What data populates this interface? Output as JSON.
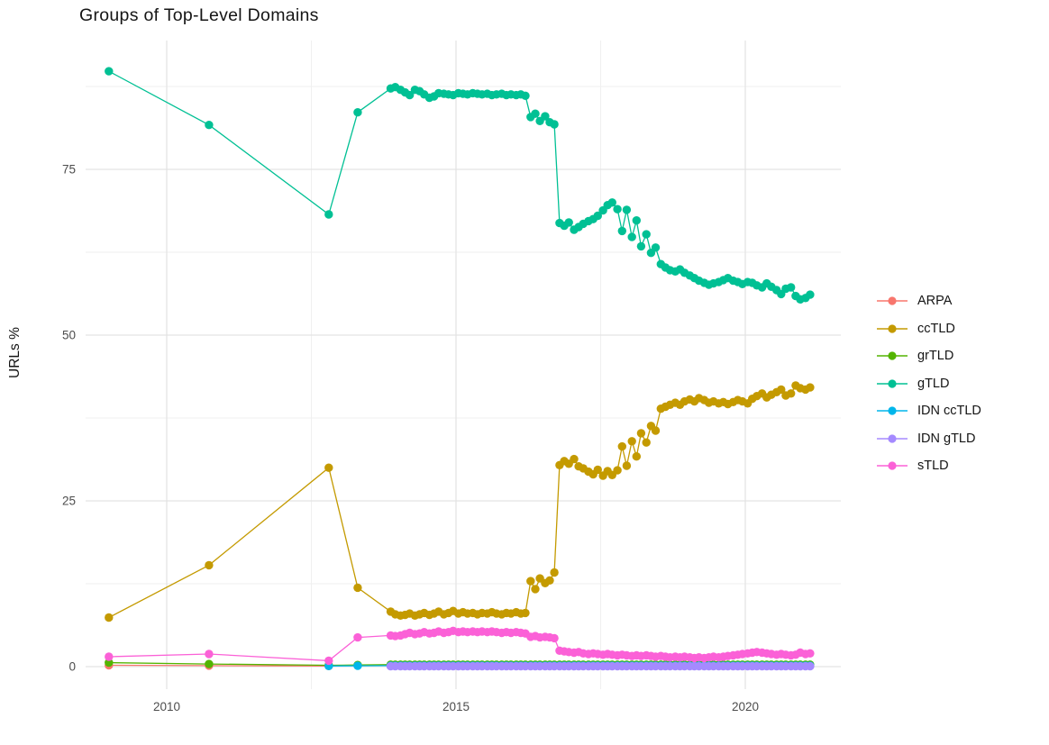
{
  "chart_data": {
    "type": "line",
    "title": "Groups of Top-Level Domains",
    "xlabel": "",
    "ylabel": "URLs %",
    "x_ticks": [
      2010,
      2015,
      2020
    ],
    "x_minor_ticks": [
      2012.5,
      2017.5
    ],
    "y_ticks": [
      0,
      25,
      50,
      75
    ],
    "y_minor_ticks": [
      12.5,
      37.5,
      62.5,
      87.5
    ],
    "xlim": [
      2008.6,
      2021.65
    ],
    "ylim": [
      -4,
      94.5
    ],
    "grid": true,
    "legend_position": "right",
    "x_dense": [
      2013.87,
      2013.95,
      2014.04,
      2014.12,
      2014.2,
      2014.29,
      2014.37,
      2014.45,
      2014.54,
      2014.62,
      2014.7,
      2014.79,
      2014.87,
      2014.95,
      2015.04,
      2015.12,
      2015.2,
      2015.29,
      2015.37,
      2015.45,
      2015.54,
      2015.62,
      2015.7,
      2015.79,
      2015.87,
      2015.95,
      2016.04,
      2016.12,
      2016.2,
      2016.29,
      2016.37,
      2016.45,
      2016.54,
      2016.62,
      2016.7,
      2016.79,
      2016.87,
      2016.95,
      2017.04,
      2017.12,
      2017.2,
      2017.29,
      2017.37,
      2017.45,
      2017.54,
      2017.62,
      2017.7,
      2017.79,
      2017.87,
      2017.95,
      2018.04,
      2018.12,
      2018.2,
      2018.29,
      2018.37,
      2018.45,
      2018.54,
      2018.62,
      2018.7,
      2018.79,
      2018.87,
      2018.95,
      2019.04,
      2019.12,
      2019.2,
      2019.29,
      2019.37,
      2019.45,
      2019.54,
      2019.62,
      2019.7,
      2019.79,
      2019.87,
      2019.95,
      2020.04,
      2020.12,
      2020.2,
      2020.29,
      2020.37,
      2020.45,
      2020.54,
      2020.62,
      2020.7,
      2020.79,
      2020.87,
      2020.95,
      2021.04,
      2021.12
    ],
    "series": [
      {
        "name": "ARPA",
        "color": "#F8766D",
        "early": [
          [
            2009.0,
            0.2
          ],
          [
            2010.73,
            0.15
          ],
          [
            2012.8,
            0.1
          ]
        ]
      },
      {
        "name": "ccTLD",
        "color": "#C49A00",
        "early": [
          [
            2009.0,
            7.4
          ],
          [
            2010.73,
            15.3
          ],
          [
            2012.8,
            30.0
          ],
          [
            2013.3,
            11.9
          ]
        ],
        "values": [
          8.3,
          7.9,
          7.7,
          7.8,
          8.0,
          7.7,
          7.9,
          8.1,
          7.8,
          8.0,
          8.3,
          7.9,
          8.1,
          8.4,
          8.0,
          8.2,
          8.0,
          8.1,
          7.9,
          8.1,
          8.0,
          8.2,
          8.0,
          7.9,
          8.1,
          8.0,
          8.2,
          8.0,
          8.1,
          12.9,
          11.7,
          13.3,
          12.6,
          13.0,
          14.2,
          30.4,
          31.0,
          30.6,
          31.3,
          30.2,
          29.9,
          29.4,
          29.0,
          29.7,
          28.8,
          29.5,
          28.9,
          29.6,
          33.2,
          30.3,
          34.0,
          31.7,
          35.2,
          33.8,
          36.3,
          35.6,
          38.9,
          39.2,
          39.5,
          39.8,
          39.5,
          40.0,
          40.3,
          40.0,
          40.5,
          40.2,
          39.8,
          40.0,
          39.7,
          39.9,
          39.6,
          39.9,
          40.2,
          40.0,
          39.7,
          40.4,
          40.8,
          41.2,
          40.6,
          41.0,
          41.4,
          41.8,
          40.9,
          41.2,
          42.4,
          42.0,
          41.8,
          42.1
        ]
      },
      {
        "name": "grTLD",
        "color": "#53B400",
        "early": [
          [
            2009.0,
            0.6
          ],
          [
            2010.73,
            0.4
          ],
          [
            2012.8,
            0.2
          ],
          [
            2013.3,
            0.25
          ]
        ],
        "dense_value": 0.3
      },
      {
        "name": "gTLD",
        "color": "#00C094",
        "early": [
          [
            2009.0,
            89.8
          ],
          [
            2010.73,
            81.7
          ],
          [
            2012.8,
            68.2
          ],
          [
            2013.3,
            83.6
          ]
        ],
        "values": [
          87.2,
          87.4,
          87.0,
          86.6,
          86.2,
          87.0,
          86.8,
          86.3,
          85.8,
          86.0,
          86.5,
          86.4,
          86.3,
          86.2,
          86.5,
          86.4,
          86.3,
          86.5,
          86.4,
          86.3,
          86.4,
          86.2,
          86.3,
          86.4,
          86.2,
          86.3,
          86.2,
          86.3,
          86.1,
          82.9,
          83.4,
          82.3,
          83.0,
          82.1,
          81.8,
          66.9,
          66.5,
          67.0,
          65.9,
          66.3,
          66.8,
          67.2,
          67.5,
          68.0,
          68.8,
          69.6,
          70.0,
          69.0,
          65.7,
          68.9,
          64.8,
          67.3,
          63.4,
          65.2,
          62.4,
          63.2,
          60.7,
          60.2,
          59.8,
          59.6,
          59.9,
          59.4,
          59.0,
          58.6,
          58.2,
          57.9,
          57.6,
          57.8,
          58.0,
          58.3,
          58.6,
          58.2,
          58.0,
          57.7,
          58.0,
          57.9,
          57.5,
          57.2,
          57.8,
          57.3,
          56.8,
          56.2,
          57.0,
          57.2,
          55.9,
          55.4,
          55.6,
          56.1
        ]
      },
      {
        "name": "IDN ccTLD",
        "color": "#00B6EB",
        "early": [
          [
            2012.8,
            0.1
          ],
          [
            2013.3,
            0.12
          ]
        ],
        "dense_value": 0.15
      },
      {
        "name": "IDN gTLD",
        "color": "#A58AFF",
        "early": [],
        "dense_value": 0.05
      },
      {
        "name": "sTLD",
        "color": "#FB61D7",
        "early": [
          [
            2009.0,
            1.5
          ],
          [
            2010.73,
            1.9
          ],
          [
            2012.8,
            0.9
          ],
          [
            2013.3,
            4.4
          ]
        ],
        "values": [
          4.7,
          4.6,
          4.7,
          4.9,
          5.1,
          4.9,
          5.0,
          5.2,
          5.0,
          5.1,
          5.3,
          5.1,
          5.2,
          5.4,
          5.2,
          5.3,
          5.2,
          5.3,
          5.2,
          5.3,
          5.2,
          5.3,
          5.2,
          5.1,
          5.2,
          5.1,
          5.2,
          5.1,
          5.0,
          4.5,
          4.6,
          4.4,
          4.5,
          4.4,
          4.3,
          2.4,
          2.3,
          2.2,
          2.1,
          2.2,
          2.0,
          1.9,
          2.0,
          1.9,
          1.8,
          1.9,
          1.8,
          1.7,
          1.8,
          1.7,
          1.6,
          1.7,
          1.6,
          1.7,
          1.6,
          1.5,
          1.6,
          1.5,
          1.4,
          1.5,
          1.4,
          1.5,
          1.4,
          1.3,
          1.4,
          1.3,
          1.4,
          1.5,
          1.4,
          1.5,
          1.6,
          1.7,
          1.8,
          1.9,
          2.0,
          2.1,
          2.2,
          2.1,
          2.0,
          1.9,
          1.8,
          1.9,
          1.8,
          1.7,
          1.8,
          2.1,
          1.9,
          2.0
        ]
      }
    ]
  }
}
